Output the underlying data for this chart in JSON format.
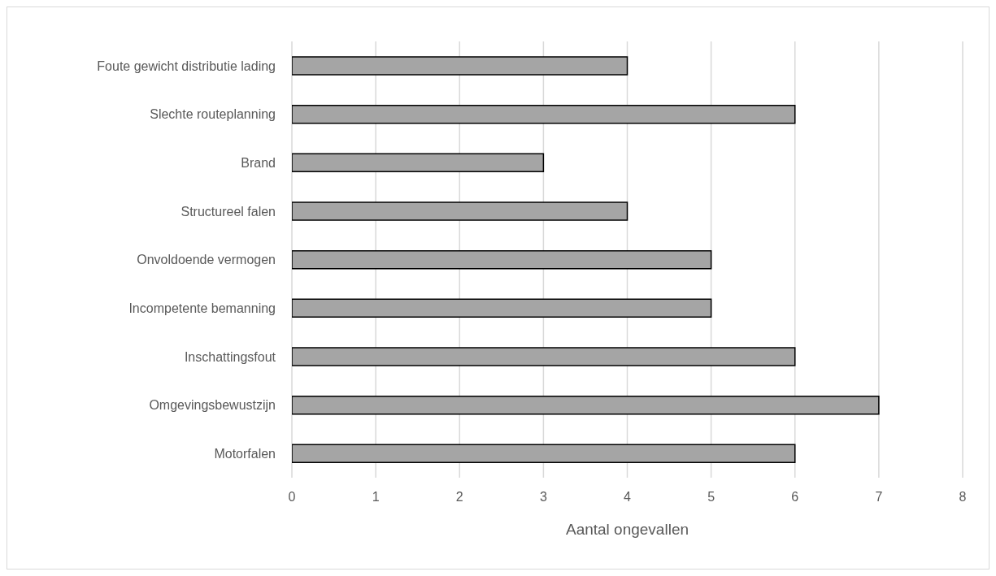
{
  "chart_data": {
    "type": "bar",
    "orientation": "horizontal",
    "xlabel": "Aantal ongevallen",
    "categories": [
      "Foute gewicht distributie lading",
      "Slechte routeplanning",
      "Brand",
      "Structureel falen",
      "Onvoldoende vermogen",
      "Incompetente bemanning",
      "Inschattingsfout",
      "Omgevingsbewustzijn",
      "Motorfalen"
    ],
    "values": [
      4,
      6,
      3,
      4,
      5,
      5,
      6,
      7,
      6
    ],
    "color": "#a5a5a5",
    "xlim": [
      0,
      8
    ],
    "xticks": [
      0,
      1,
      2,
      3,
      4,
      5,
      6,
      7,
      8
    ],
    "grid": "x",
    "legend": false
  }
}
